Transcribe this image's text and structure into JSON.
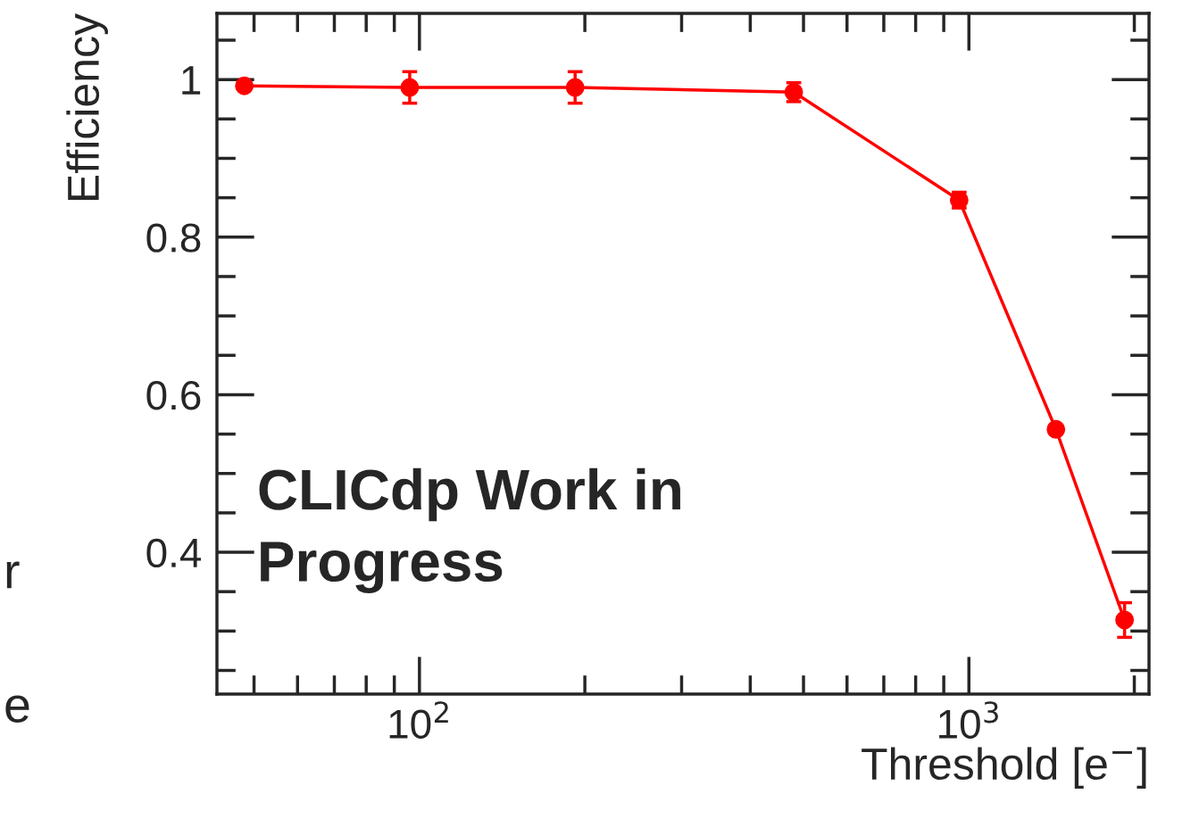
{
  "chart_data": {
    "type": "line",
    "xlabel": "Threshold [e$^{−}$]",
    "ylabel": "Efficiency",
    "x": [
      48,
      96,
      192,
      480,
      960,
      1440,
      1920
    ],
    "series": [
      {
        "color": "#ff0000",
        "values": [
          0.992,
          0.99,
          0.99,
          0.984,
          0.847,
          0.556,
          0.314
        ],
        "errors": [
          0.004,
          0.02,
          0.02,
          0.012,
          0.01,
          0.005,
          0.022
        ]
      }
    ],
    "log": "x",
    "xlim": [
      42.8,
      2127
    ],
    "xticks": [
      {
        "value": 100,
        "label": "10$^{2}$"
      },
      {
        "value": 1000,
        "label": "10$^{3}$"
      }
    ],
    "ylim": [
      0.22,
      1.084
    ],
    "yticks": [
      {
        "value": 0.4,
        "label": "0.4"
      },
      {
        "value": 0.6,
        "label": "0.6"
      },
      {
        "value": 0.8,
        "label": "0.8"
      },
      {
        "value": 1,
        "label": "1"
      }
    ],
    "marker": "circle",
    "line_style": "solid",
    "grid": false,
    "annotations": [
      "CLICdp Work in\nProgress",
      "r",
      "e"
    ]
  }
}
